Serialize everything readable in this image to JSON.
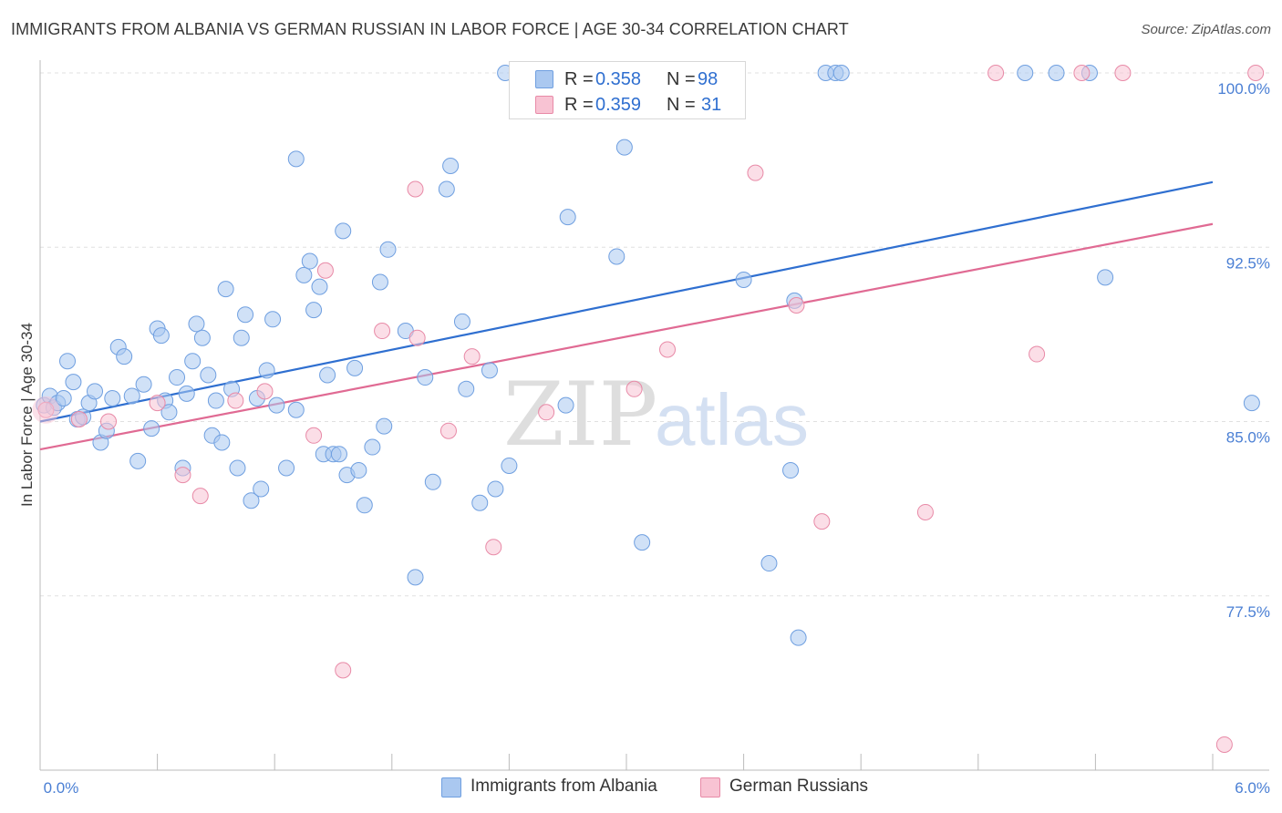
{
  "title": "IMMIGRANTS FROM ALBANIA VS GERMAN RUSSIAN IN LABOR FORCE | AGE 30-34 CORRELATION CHART",
  "source": "Source: ZipAtlas.com",
  "watermark": {
    "zip": "ZIP",
    "atlas": "atlas"
  },
  "legend_top": {
    "rows": [
      {
        "r_label": "R = ",
        "r_value": "0.358",
        "n_label": "N = ",
        "n_value": "98",
        "color": "#aac8f0",
        "border": "#6f9fe0"
      },
      {
        "r_label": "R = ",
        "r_value": "0.359",
        "n_label": "N = ",
        "n_value": "31",
        "color": "#f8c3d3",
        "border": "#e88aa7"
      }
    ]
  },
  "legend_bottom": [
    {
      "label": "Immigrants from Albania",
      "color": "#aac8f0",
      "border": "#6f9fe0"
    },
    {
      "label": "German Russians",
      "color": "#f8c3d3",
      "border": "#e88aa7"
    }
  ],
  "chart_data": {
    "type": "scatter",
    "ylabel": "In Labor Force | Age 30-34",
    "xlabel": "",
    "xlim": [
      0,
      6
    ],
    "ylim": [
      70,
      100
    ],
    "x_tick_labels": [
      {
        "value": 0,
        "label": "0.0%"
      },
      {
        "value": 6,
        "label": "6.0%"
      }
    ],
    "y_tick_labels": [
      {
        "value": 77.5,
        "label": "77.5%"
      },
      {
        "value": 85.0,
        "label": "85.0%"
      },
      {
        "value": 92.5,
        "label": "92.5%"
      },
      {
        "value": 100.0,
        "label": "100.0%"
      }
    ],
    "grid": "horizontal dashed",
    "legend_position": "top-center",
    "series": [
      {
        "name": "Immigrants from Albania",
        "color": "#aac8f0",
        "stroke": "#6f9fe0",
        "trend_color": "#2f6fd0",
        "r": 0.358,
        "n": 98,
        "trend": {
          "x": [
            0,
            6
          ],
          "y": [
            85.0,
            95.3
          ]
        },
        "points": [
          [
            0.02,
            85.7
          ],
          [
            0.05,
            86.1
          ],
          [
            0.07,
            85.6
          ],
          [
            0.09,
            85.8
          ],
          [
            0.12,
            86.0
          ],
          [
            0.14,
            87.6
          ],
          [
            0.17,
            86.7
          ],
          [
            0.19,
            85.1
          ],
          [
            0.22,
            85.2
          ],
          [
            0.25,
            85.8
          ],
          [
            0.28,
            86.3
          ],
          [
            0.31,
            84.1
          ],
          [
            0.34,
            84.6
          ],
          [
            0.37,
            86.0
          ],
          [
            0.4,
            88.2
          ],
          [
            0.43,
            87.8
          ],
          [
            0.47,
            86.1
          ],
          [
            0.5,
            83.3
          ],
          [
            0.53,
            86.6
          ],
          [
            0.57,
            84.7
          ],
          [
            0.6,
            89.0
          ],
          [
            0.62,
            88.7
          ],
          [
            0.64,
            85.9
          ],
          [
            0.66,
            85.4
          ],
          [
            0.7,
            86.9
          ],
          [
            0.73,
            83.0
          ],
          [
            0.75,
            86.2
          ],
          [
            0.78,
            87.6
          ],
          [
            0.8,
            89.2
          ],
          [
            0.83,
            88.6
          ],
          [
            0.86,
            87.0
          ],
          [
            0.88,
            84.4
          ],
          [
            0.9,
            85.9
          ],
          [
            0.93,
            84.1
          ],
          [
            0.95,
            90.7
          ],
          [
            0.98,
            86.4
          ],
          [
            1.01,
            83.0
          ],
          [
            1.03,
            88.6
          ],
          [
            1.05,
            89.6
          ],
          [
            1.08,
            81.6
          ],
          [
            1.11,
            86.0
          ],
          [
            1.13,
            82.1
          ],
          [
            1.16,
            87.2
          ],
          [
            1.19,
            89.4
          ],
          [
            1.21,
            85.7
          ],
          [
            1.26,
            83.0
          ],
          [
            1.31,
            85.5
          ],
          [
            1.31,
            96.3
          ],
          [
            1.35,
            91.3
          ],
          [
            1.38,
            91.9
          ],
          [
            1.4,
            89.8
          ],
          [
            1.43,
            90.8
          ],
          [
            1.45,
            83.6
          ],
          [
            1.47,
            87.0
          ],
          [
            1.5,
            83.6
          ],
          [
            1.53,
            83.6
          ],
          [
            1.55,
            93.2
          ],
          [
            1.57,
            82.7
          ],
          [
            1.61,
            87.3
          ],
          [
            1.63,
            82.9
          ],
          [
            1.66,
            81.4
          ],
          [
            1.7,
            83.9
          ],
          [
            1.74,
            91.0
          ],
          [
            1.76,
            84.8
          ],
          [
            1.78,
            92.4
          ],
          [
            1.87,
            88.9
          ],
          [
            1.92,
            78.3
          ],
          [
            1.97,
            86.9
          ],
          [
            2.01,
            82.4
          ],
          [
            2.08,
            95.0
          ],
          [
            2.1,
            96.0
          ],
          [
            2.16,
            89.3
          ],
          [
            2.18,
            86.4
          ],
          [
            2.25,
            81.5
          ],
          [
            2.3,
            87.2
          ],
          [
            2.33,
            82.1
          ],
          [
            2.38,
            100.0
          ],
          [
            2.4,
            83.1
          ],
          [
            2.69,
            85.7
          ],
          [
            2.7,
            93.8
          ],
          [
            2.82,
            100.0
          ],
          [
            2.95,
            92.1
          ],
          [
            2.99,
            96.8
          ],
          [
            3.08,
            79.8
          ],
          [
            3.48,
            100.0
          ],
          [
            3.6,
            91.1
          ],
          [
            3.73,
            78.9
          ],
          [
            3.84,
            82.9
          ],
          [
            3.86,
            90.2
          ],
          [
            3.88,
            75.7
          ],
          [
            4.02,
            100.0
          ],
          [
            4.07,
            100.0
          ],
          [
            4.1,
            100.0
          ],
          [
            5.04,
            100.0
          ],
          [
            5.37,
            100.0
          ],
          [
            5.45,
            91.2
          ],
          [
            5.2,
            100.0
          ],
          [
            6.2,
            85.8
          ]
        ]
      },
      {
        "name": "German Russians",
        "color": "#f8c3d3",
        "stroke": "#e88aa7",
        "trend_color": "#e06a93",
        "r": 0.359,
        "n": 31,
        "trend": {
          "x": [
            0,
            6
          ],
          "y": [
            83.8,
            93.5
          ]
        },
        "points": [
          [
            0.03,
            85.5
          ],
          [
            0.2,
            85.1
          ],
          [
            0.35,
            85.0
          ],
          [
            0.6,
            85.8
          ],
          [
            0.73,
            82.7
          ],
          [
            0.82,
            81.8
          ],
          [
            1.0,
            85.9
          ],
          [
            1.15,
            86.3
          ],
          [
            1.4,
            84.4
          ],
          [
            1.46,
            91.5
          ],
          [
            1.55,
            74.3
          ],
          [
            1.75,
            88.9
          ],
          [
            1.92,
            95.0
          ],
          [
            1.93,
            88.6
          ],
          [
            2.09,
            84.6
          ],
          [
            2.21,
            87.8
          ],
          [
            2.32,
            79.6
          ],
          [
            2.59,
            85.4
          ],
          [
            3.04,
            86.4
          ],
          [
            3.21,
            88.1
          ],
          [
            3.48,
            100.0
          ],
          [
            3.66,
            95.7
          ],
          [
            3.87,
            90.0
          ],
          [
            4.0,
            80.7
          ],
          [
            4.53,
            81.1
          ],
          [
            4.89,
            100.0
          ],
          [
            5.1,
            87.9
          ],
          [
            5.33,
            100.0
          ],
          [
            5.54,
            100.0
          ],
          [
            6.06,
            71.1
          ],
          [
            6.22,
            100.0
          ]
        ]
      }
    ]
  }
}
